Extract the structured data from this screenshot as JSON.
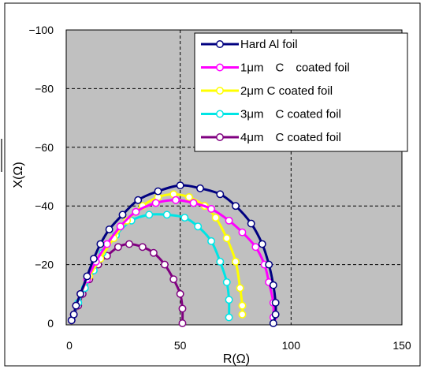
{
  "chart_data": {
    "type": "scatter",
    "title": "",
    "xlabel": "R(Ω)",
    "ylabel": "X(Ω)",
    "xlim": [
      0,
      150
    ],
    "ylim": [
      0,
      -100
    ],
    "y_axis_reversed": true,
    "xticks": [
      "0",
      "50",
      "100",
      "150"
    ],
    "yticks": [
      "-100",
      "-80",
      "-60",
      "-40",
      "-20",
      "0"
    ],
    "grid": "dashed",
    "plot_background": "#c0c0c0",
    "legend_position": "top-right",
    "series": [
      {
        "name": "Hard Al foil",
        "color": "#000080",
        "points": [
          [
            1,
            -1
          ],
          [
            2,
            -3
          ],
          [
            3,
            -6
          ],
          [
            5,
            -10
          ],
          [
            8,
            -16
          ],
          [
            11,
            -22
          ],
          [
            14,
            -27
          ],
          [
            18,
            -32
          ],
          [
            24,
            -37
          ],
          [
            31,
            -42
          ],
          [
            40,
            -45
          ],
          [
            50,
            -47
          ],
          [
            59,
            -46
          ],
          [
            68,
            -44
          ],
          [
            75,
            -40
          ],
          [
            82,
            -34
          ],
          [
            87,
            -27
          ],
          [
            90,
            -20
          ],
          [
            92,
            -13
          ],
          [
            93,
            -7
          ],
          [
            93,
            -3
          ],
          [
            92,
            0
          ]
        ]
      },
      {
        "name": "1μm　C　coated foil",
        "color": "#ff00ff",
        "points": [
          [
            1,
            -1
          ],
          [
            2,
            -3
          ],
          [
            3,
            -6
          ],
          [
            5,
            -10
          ],
          [
            8,
            -15
          ],
          [
            12,
            -21
          ],
          [
            17,
            -27
          ],
          [
            23,
            -33
          ],
          [
            30,
            -38
          ],
          [
            39,
            -41
          ],
          [
            48,
            -42
          ],
          [
            56,
            -41
          ],
          [
            64,
            -39
          ],
          [
            72,
            -35
          ],
          [
            78,
            -31
          ],
          [
            84,
            -26
          ],
          [
            88,
            -20
          ],
          [
            90,
            -14
          ],
          [
            92,
            -7
          ],
          [
            92,
            -2
          ]
        ]
      },
      {
        "name": "2μm C coated foil",
        "color": "#ffff00",
        "points": [
          [
            1,
            -1
          ],
          [
            2,
            -3
          ],
          [
            3,
            -6
          ],
          [
            5,
            -10
          ],
          [
            9,
            -16
          ],
          [
            14,
            -22
          ],
          [
            20,
            -29
          ],
          [
            26,
            -35
          ],
          [
            33,
            -40
          ],
          [
            40,
            -43
          ],
          [
            47,
            -44
          ],
          [
            54,
            -43
          ],
          [
            61,
            -40
          ],
          [
            66,
            -36
          ],
          [
            71,
            -29
          ],
          [
            75,
            -21
          ],
          [
            77,
            -12
          ],
          [
            78,
            -6
          ],
          [
            78,
            -3
          ]
        ]
      },
      {
        "name": "3μm　C coated foil",
        "color": "#00e5e5",
        "points": [
          [
            1,
            -1
          ],
          [
            2,
            -3
          ],
          [
            4,
            -7
          ],
          [
            7,
            -12
          ],
          [
            11,
            -18
          ],
          [
            15,
            -24
          ],
          [
            21,
            -30
          ],
          [
            28,
            -35
          ],
          [
            36,
            -37
          ],
          [
            44,
            -37
          ],
          [
            52,
            -36
          ],
          [
            58,
            -33
          ],
          [
            64,
            -28
          ],
          [
            68,
            -21
          ],
          [
            71,
            -14
          ],
          [
            72,
            -8
          ],
          [
            72,
            -2
          ]
        ]
      },
      {
        "name": "4μm　C coated foil",
        "color": "#800080",
        "points": [
          [
            1,
            -1
          ],
          [
            2,
            -3
          ],
          [
            4,
            -6
          ],
          [
            6,
            -10
          ],
          [
            9,
            -15
          ],
          [
            13,
            -20
          ],
          [
            17,
            -23
          ],
          [
            22,
            -26
          ],
          [
            27,
            -27
          ],
          [
            33,
            -26
          ],
          [
            38,
            -24
          ],
          [
            43,
            -20
          ],
          [
            47,
            -15
          ],
          [
            50,
            -10
          ],
          [
            51,
            -5
          ],
          [
            51,
            0
          ]
        ]
      }
    ]
  }
}
